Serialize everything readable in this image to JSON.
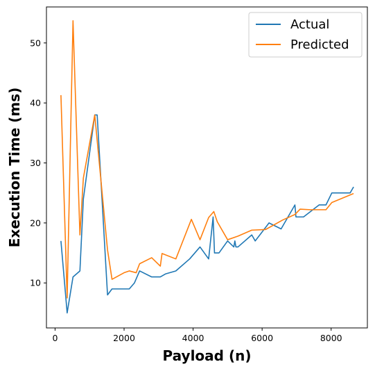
{
  "chart_data": {
    "type": "line",
    "title": "",
    "xlabel": "Payload (n)",
    "ylabel": "Execution Time (ms)",
    "xlim": [
      -250,
      9050
    ],
    "ylim": [
      2.5,
      56
    ],
    "xticks": [
      0,
      2000,
      4000,
      6000,
      8000
    ],
    "yticks": [
      10,
      20,
      30,
      40,
      50
    ],
    "grid": false,
    "legend": "top-right",
    "series": [
      {
        "name": "Actual",
        "color": "#1f77b4",
        "x": [
          170,
          350,
          520,
          720,
          820,
          1150,
          1220,
          1520,
          1650,
          1850,
          2150,
          2300,
          2450,
          2800,
          3050,
          3200,
          3500,
          3900,
          4200,
          4450,
          4580,
          4620,
          4750,
          5000,
          5180,
          5210,
          5240,
          5300,
          5700,
          5800,
          6000,
          6200,
          6550,
          6950,
          6980,
          7200,
          7650,
          7850,
          8020,
          8550,
          8650
        ],
        "y": [
          17,
          5,
          11,
          12,
          24,
          38,
          38,
          8,
          9,
          9,
          9,
          10,
          12,
          11,
          11,
          11.5,
          12,
          14,
          16,
          14,
          21,
          15,
          15,
          17,
          16,
          17,
          16,
          16,
          18,
          17,
          18.5,
          20,
          19,
          23,
          21,
          21,
          23,
          23,
          25,
          25,
          26
        ]
      },
      {
        "name": "Predicted",
        "color": "#ff7f0e",
        "x": [
          170,
          350,
          520,
          720,
          820,
          1150,
          1520,
          1650,
          2000,
          2150,
          2350,
          2450,
          2800,
          3050,
          3100,
          3500,
          3950,
          4200,
          4450,
          4600,
          4700,
          5000,
          5300,
          5700,
          6100,
          6600,
          6950,
          7100,
          7400,
          7850,
          8020,
          8650
        ],
        "y": [
          41.3,
          7.5,
          53.7,
          18,
          27.5,
          38,
          15.5,
          10.6,
          11.7,
          12,
          11.7,
          13.2,
          14.2,
          12.8,
          14.9,
          14,
          20.6,
          17.2,
          20.9,
          21.9,
          20.2,
          17.2,
          17.8,
          18.8,
          18.9,
          20.5,
          21.4,
          22.3,
          22.2,
          22.2,
          23.4,
          24.9
        ]
      }
    ]
  }
}
